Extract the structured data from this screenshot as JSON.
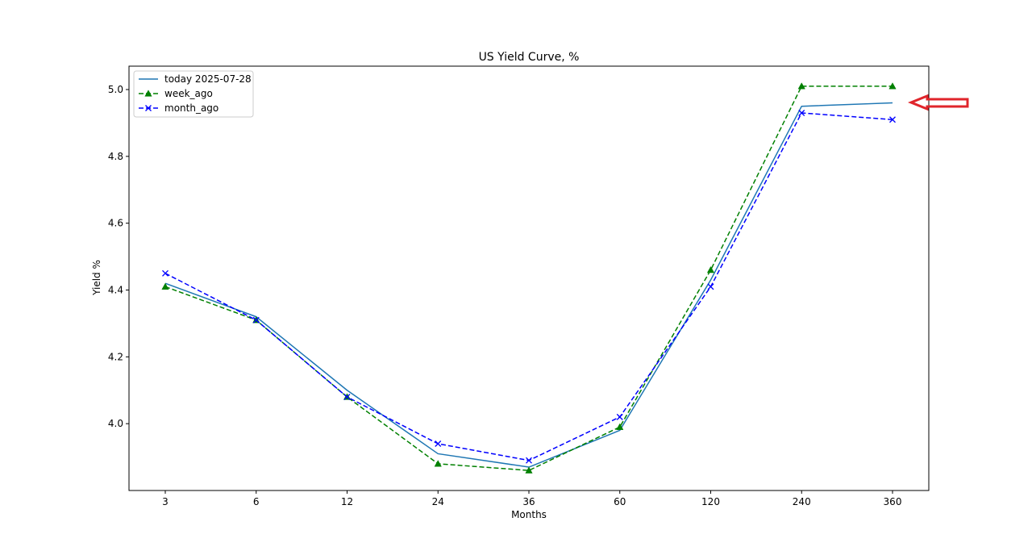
{
  "chart_data": {
    "type": "line",
    "title": "US Yield Curve, %",
    "xlabel": "Months",
    "ylabel": "Yield %",
    "categories": [
      "3",
      "6",
      "12",
      "24",
      "36",
      "60",
      "120",
      "240",
      "360"
    ],
    "ylim": [
      3.8,
      5.07
    ],
    "yticks": [
      "4.0",
      "4.2",
      "4.4",
      "4.6",
      "4.8",
      "5.0"
    ],
    "grid": false,
    "legend_position": "top-left",
    "series": [
      {
        "name": "today 2025-07-28",
        "color": "#1f77b4",
        "style": "solid",
        "marker": "none",
        "values": [
          4.42,
          4.32,
          4.1,
          3.91,
          3.87,
          3.98,
          4.43,
          4.95,
          4.96
        ]
      },
      {
        "name": "week_ago",
        "color": "#008000",
        "style": "dashed",
        "marker": "triangle",
        "values": [
          4.41,
          4.31,
          4.08,
          3.88,
          3.86,
          3.99,
          4.46,
          5.01,
          5.01
        ]
      },
      {
        "name": "month_ago",
        "color": "#0000ff",
        "style": "dashed",
        "marker": "x",
        "values": [
          4.45,
          4.31,
          4.08,
          3.94,
          3.89,
          4.02,
          4.41,
          4.93,
          4.91
        ]
      }
    ]
  },
  "annotation": {
    "type": "arrow",
    "direction": "left",
    "color": "#e0252b"
  }
}
